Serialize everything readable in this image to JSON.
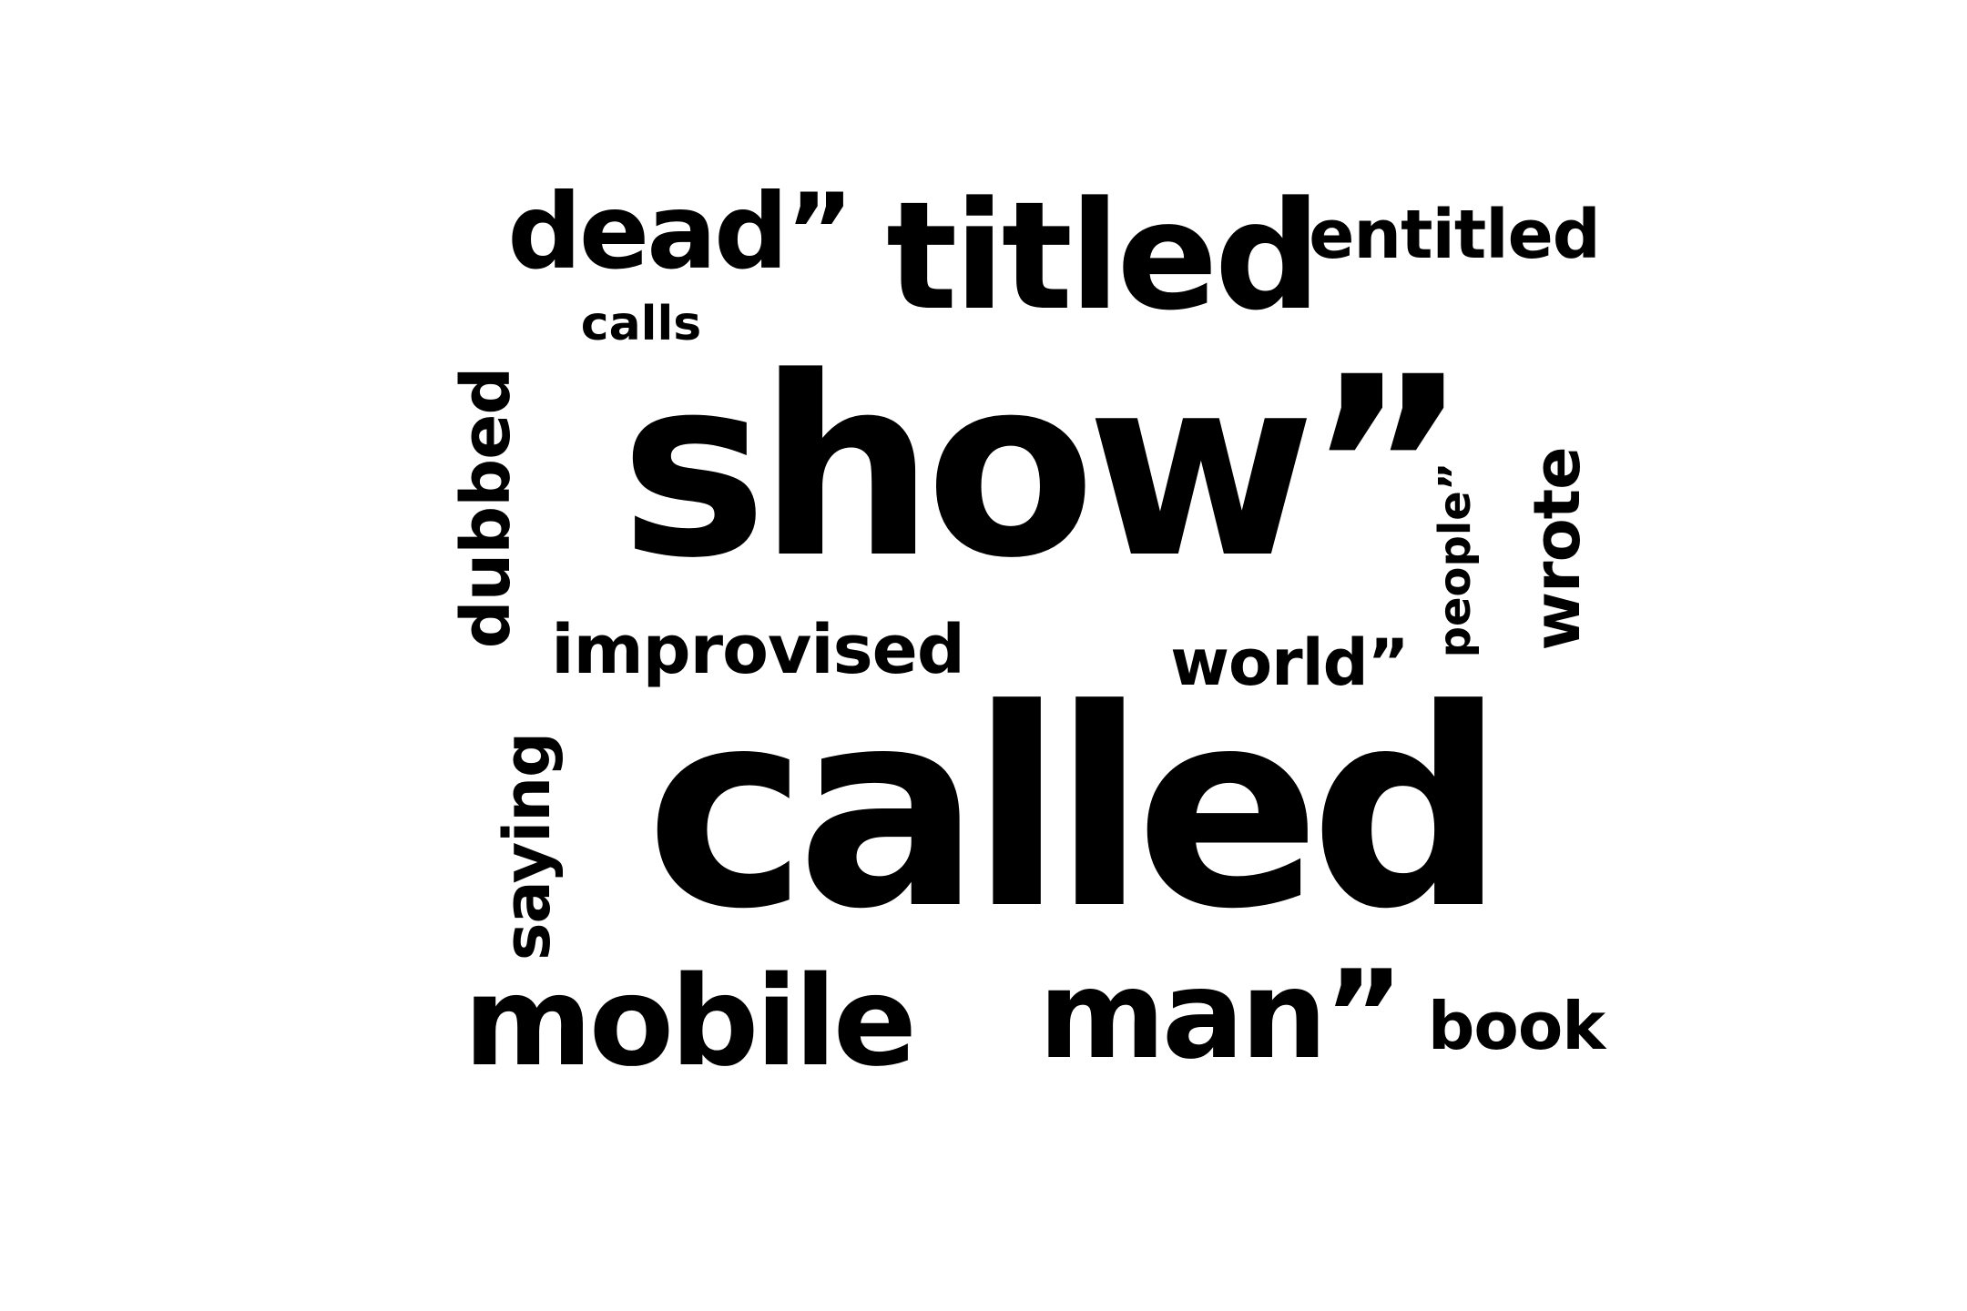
{
  "word_cloud": {
    "words": [
      {
        "text": "show”",
        "weight": 1.0
      },
      {
        "text": "called",
        "weight": 0.98
      },
      {
        "text": "titled",
        "weight": 0.6
      },
      {
        "text": "mobile",
        "weight": 0.5
      },
      {
        "text": "man”",
        "weight": 0.5
      },
      {
        "text": "dead”",
        "weight": 0.42
      },
      {
        "text": "entitled",
        "weight": 0.27
      },
      {
        "text": "improvised",
        "weight": 0.27
      },
      {
        "text": "dubbed",
        "weight": 0.27
      },
      {
        "text": "wrote",
        "weight": 0.26
      },
      {
        "text": "world”",
        "weight": 0.26
      },
      {
        "text": "saying",
        "weight": 0.26
      },
      {
        "text": "book",
        "weight": 0.26
      },
      {
        "text": "calls",
        "weight": 0.19
      },
      {
        "text": "people”",
        "weight": 0.18
      }
    ],
    "text_color": "#000000",
    "background_color": "#ffffff"
  }
}
